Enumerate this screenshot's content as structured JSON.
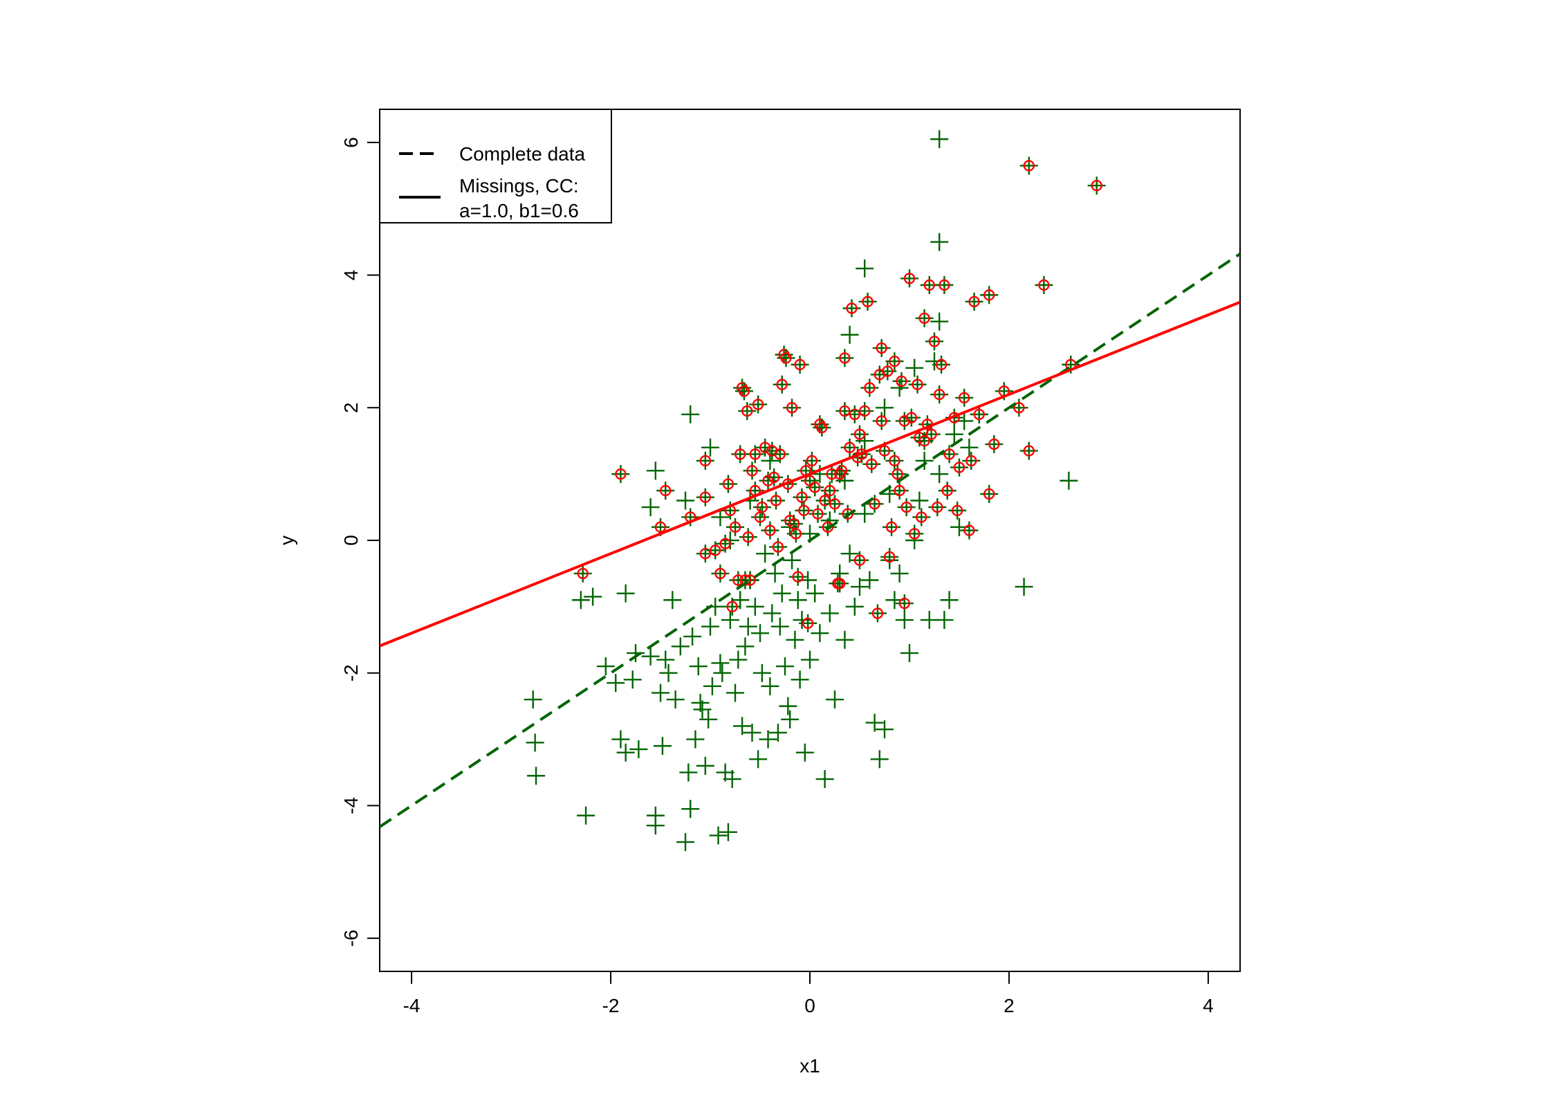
{
  "chart_data": {
    "type": "scatter",
    "title": "",
    "xlabel": "x1",
    "ylabel": "y",
    "xlim": [
      -4.32,
      4.32
    ],
    "ylim": [
      -6.5,
      6.5
    ],
    "xticks": [
      -4,
      -2,
      0,
      2,
      4
    ],
    "yticks": [
      -6,
      -4,
      -2,
      0,
      2,
      4,
      6
    ],
    "xtick_labels": [
      "-4",
      "-2",
      "0",
      "2",
      "4"
    ],
    "ytick_labels": [
      "-6",
      "-4",
      "-2",
      "0",
      "2",
      "4",
      "6"
    ],
    "grid": false,
    "legend_position": "top-left",
    "colors": {
      "complete": "#006400",
      "missing": "#ff0000"
    },
    "series": [
      {
        "name": "Complete data",
        "marker": "plus",
        "color": "#006400",
        "points": [
          [
            -2.78,
            -2.4
          ],
          [
            -2.76,
            -3.05
          ],
          [
            -2.75,
            -3.55
          ],
          [
            -2.3,
            -0.9
          ],
          [
            -2.25,
            -4.15
          ],
          [
            -2.18,
            -0.85
          ],
          [
            -2.05,
            -1.9
          ],
          [
            -1.95,
            -2.15
          ],
          [
            -1.9,
            -3.0
          ],
          [
            -1.85,
            -3.2
          ],
          [
            -1.85,
            -0.8
          ],
          [
            -1.78,
            -2.1
          ],
          [
            -1.75,
            -1.7
          ],
          [
            -1.72,
            -3.15
          ],
          [
            -1.6,
            -1.75
          ],
          [
            -1.55,
            -4.15
          ],
          [
            -1.55,
            -4.3
          ],
          [
            -1.5,
            -2.3
          ],
          [
            -1.48,
            -3.1
          ],
          [
            -1.45,
            -1.8
          ],
          [
            -1.42,
            -2.0
          ],
          [
            -1.38,
            -0.9
          ],
          [
            -1.35,
            -2.4
          ],
          [
            -1.3,
            -1.6
          ],
          [
            -1.25,
            -4.55
          ],
          [
            -1.22,
            -3.5
          ],
          [
            -1.2,
            -4.05
          ],
          [
            -1.18,
            -1.45
          ],
          [
            -1.15,
            -3.0
          ],
          [
            -1.12,
            -1.9
          ],
          [
            -1.1,
            -2.45
          ],
          [
            -1.08,
            -2.55
          ],
          [
            -1.05,
            -3.4
          ],
          [
            -1.02,
            -2.7
          ],
          [
            -1.0,
            -1.3
          ],
          [
            -0.98,
            -2.2
          ],
          [
            -0.95,
            -1.0
          ],
          [
            -0.92,
            -4.45
          ],
          [
            -0.9,
            -1.85
          ],
          [
            -0.88,
            -2.0
          ],
          [
            -0.85,
            -3.5
          ],
          [
            -0.82,
            -4.4
          ],
          [
            -0.8,
            -1.2
          ],
          [
            -0.78,
            -3.6
          ],
          [
            -0.75,
            -2.3
          ],
          [
            -0.72,
            -1.8
          ],
          [
            -0.7,
            -0.9
          ],
          [
            -0.68,
            -2.8
          ],
          [
            -0.65,
            -1.6
          ],
          [
            -0.62,
            -1.3
          ],
          [
            -0.6,
            -0.6
          ],
          [
            -0.58,
            -2.9
          ],
          [
            -0.55,
            -1.0
          ],
          [
            -0.52,
            -3.3
          ],
          [
            -0.5,
            -1.4
          ],
          [
            -0.48,
            -2.0
          ],
          [
            -0.45,
            -0.2
          ],
          [
            -0.42,
            -3.0
          ],
          [
            -0.4,
            -2.2
          ],
          [
            -0.38,
            -1.1
          ],
          [
            -0.35,
            -0.5
          ],
          [
            -0.32,
            -2.9
          ],
          [
            -0.3,
            -1.3
          ],
          [
            -0.28,
            -0.8
          ],
          [
            -0.25,
            -1.9
          ],
          [
            -0.22,
            -2.5
          ],
          [
            -0.2,
            -2.7
          ],
          [
            -0.18,
            -0.3
          ],
          [
            -0.15,
            -1.5
          ],
          [
            -0.12,
            -0.9
          ],
          [
            -0.1,
            -2.1
          ],
          [
            -0.08,
            -1.2
          ],
          [
            -0.05,
            -3.2
          ],
          [
            -0.02,
            -0.6
          ],
          [
            0.0,
            -1.8
          ],
          [
            0.05,
            -0.8
          ],
          [
            0.1,
            -1.4
          ],
          [
            0.15,
            -3.6
          ],
          [
            0.2,
            -1.1
          ],
          [
            0.25,
            -2.4
          ],
          [
            0.3,
            -0.5
          ],
          [
            0.35,
            -1.5
          ],
          [
            0.4,
            -0.2
          ],
          [
            0.45,
            -1.0
          ],
          [
            0.5,
            -0.7
          ],
          [
            0.55,
            0.4
          ],
          [
            0.6,
            -0.6
          ],
          [
            0.65,
            -2.75
          ],
          [
            0.7,
            -3.3
          ],
          [
            0.75,
            -2.85
          ],
          [
            0.8,
            -0.3
          ],
          [
            0.85,
            -0.9
          ],
          [
            0.9,
            -0.5
          ],
          [
            0.95,
            -1.2
          ],
          [
            1.0,
            -1.7
          ],
          [
            1.05,
            0.0
          ],
          [
            1.1,
            0.6
          ],
          [
            1.2,
            -1.2
          ],
          [
            1.3,
            1.0
          ],
          [
            1.35,
            -1.2
          ],
          [
            1.4,
            -0.9
          ],
          [
            1.5,
            0.2
          ],
          [
            1.6,
            1.4
          ],
          [
            2.15,
            -0.7
          ],
          [
            2.6,
            0.9
          ],
          [
            -1.55,
            1.05
          ],
          [
            -1.6,
            0.5
          ],
          [
            -1.25,
            0.6
          ],
          [
            -1.2,
            1.9
          ],
          [
            -1.0,
            1.4
          ],
          [
            -0.9,
            0.35
          ],
          [
            -0.8,
            0.0
          ],
          [
            -0.6,
            0.6
          ],
          [
            -0.4,
            1.2
          ],
          [
            -0.2,
            0.2
          ],
          [
            0.0,
            0.1
          ],
          [
            0.1,
            1.0
          ],
          [
            0.2,
            0.3
          ],
          [
            0.35,
            0.9
          ],
          [
            0.55,
            1.5
          ],
          [
            0.75,
            2.0
          ],
          [
            0.8,
            0.7
          ],
          [
            0.9,
            2.3
          ],
          [
            1.05,
            2.6
          ],
          [
            1.15,
            1.2
          ],
          [
            1.25,
            2.7
          ],
          [
            1.3,
            3.3
          ],
          [
            1.45,
            1.6
          ],
          [
            1.55,
            1.8
          ],
          [
            1.7,
            1.9
          ],
          [
            0.55,
            4.1
          ],
          [
            0.4,
            3.1
          ],
          [
            1.3,
            4.5
          ],
          [
            1.3,
            6.05
          ]
        ]
      },
      {
        "name": "Missings, CC:\na=1.0, b1=0.6",
        "marker": "circle",
        "color": "#ff0000",
        "points": [
          [
            -2.28,
            -0.5
          ],
          [
            -1.9,
            1.0
          ],
          [
            -1.5,
            0.2
          ],
          [
            -1.45,
            0.75
          ],
          [
            -1.2,
            0.35
          ],
          [
            -1.05,
            0.65
          ],
          [
            -1.05,
            -0.2
          ],
          [
            -1.05,
            1.2
          ],
          [
            -0.95,
            -0.15
          ],
          [
            -0.9,
            -0.5
          ],
          [
            -0.85,
            -0.05
          ],
          [
            -0.82,
            0.85
          ],
          [
            -0.8,
            0.45
          ],
          [
            -0.78,
            -1.0
          ],
          [
            -0.75,
            0.2
          ],
          [
            -0.72,
            -0.6
          ],
          [
            -0.7,
            1.3
          ],
          [
            -0.68,
            2.3
          ],
          [
            -0.66,
            2.25
          ],
          [
            -0.63,
            1.95
          ],
          [
            -0.62,
            0.05
          ],
          [
            -0.6,
            -0.6
          ],
          [
            -0.58,
            1.05
          ],
          [
            -0.55,
            0.75
          ],
          [
            -0.52,
            2.05
          ],
          [
            -0.5,
            0.35
          ],
          [
            -0.48,
            0.5
          ],
          [
            -0.45,
            1.4
          ],
          [
            -0.42,
            0.9
          ],
          [
            -0.4,
            0.15
          ],
          [
            -0.38,
            1.35
          ],
          [
            -0.36,
            0.95
          ],
          [
            -0.34,
            0.6
          ],
          [
            -0.32,
            -0.1
          ],
          [
            -0.3,
            1.3
          ],
          [
            -0.28,
            2.35
          ],
          [
            -0.26,
            2.8
          ],
          [
            -0.24,
            2.75
          ],
          [
            -0.22,
            0.85
          ],
          [
            -0.2,
            0.3
          ],
          [
            -0.18,
            2.0
          ],
          [
            -0.16,
            0.25
          ],
          [
            -0.14,
            0.1
          ],
          [
            -0.12,
            -0.55
          ],
          [
            -0.1,
            2.65
          ],
          [
            -0.08,
            0.65
          ],
          [
            -0.06,
            0.45
          ],
          [
            -0.04,
            1.05
          ],
          [
            -0.02,
            -1.25
          ],
          [
            0.0,
            0.9
          ],
          [
            0.02,
            1.2
          ],
          [
            0.05,
            0.8
          ],
          [
            0.08,
            0.4
          ],
          [
            0.1,
            1.75
          ],
          [
            0.12,
            1.7
          ],
          [
            0.15,
            0.6
          ],
          [
            0.18,
            0.2
          ],
          [
            0.2,
            0.75
          ],
          [
            0.22,
            1.0
          ],
          [
            0.25,
            0.55
          ],
          [
            0.28,
            -0.65
          ],
          [
            0.3,
            -0.65
          ],
          [
            0.32,
            1.05
          ],
          [
            0.35,
            2.75
          ],
          [
            0.38,
            0.4
          ],
          [
            0.4,
            1.4
          ],
          [
            0.42,
            3.5
          ],
          [
            0.45,
            1.9
          ],
          [
            0.48,
            1.25
          ],
          [
            0.5,
            -0.3
          ],
          [
            0.52,
            1.3
          ],
          [
            0.55,
            1.95
          ],
          [
            0.58,
            3.6
          ],
          [
            0.6,
            2.3
          ],
          [
            0.62,
            1.15
          ],
          [
            0.65,
            0.55
          ],
          [
            0.68,
            -1.1
          ],
          [
            0.7,
            2.5
          ],
          [
            0.72,
            1.8
          ],
          [
            0.75,
            1.35
          ],
          [
            0.78,
            2.55
          ],
          [
            0.8,
            -0.25
          ],
          [
            0.82,
            0.2
          ],
          [
            0.85,
            2.7
          ],
          [
            0.88,
            1.0
          ],
          [
            0.9,
            0.75
          ],
          [
            0.92,
            2.4
          ],
          [
            0.95,
            1.8
          ],
          [
            0.97,
            0.5
          ],
          [
            1.0,
            3.95
          ],
          [
            1.02,
            1.85
          ],
          [
            1.05,
            0.1
          ],
          [
            1.08,
            2.35
          ],
          [
            1.1,
            1.55
          ],
          [
            1.12,
            0.35
          ],
          [
            1.15,
            3.35
          ],
          [
            1.18,
            1.75
          ],
          [
            1.2,
            3.85
          ],
          [
            1.22,
            1.6
          ],
          [
            1.25,
            3.0
          ],
          [
            1.28,
            0.5
          ],
          [
            1.3,
            2.2
          ],
          [
            1.32,
            2.65
          ],
          [
            1.35,
            3.85
          ],
          [
            1.38,
            0.75
          ],
          [
            1.4,
            1.3
          ],
          [
            1.45,
            1.85
          ],
          [
            1.48,
            0.45
          ],
          [
            1.5,
            1.1
          ],
          [
            1.55,
            2.15
          ],
          [
            1.6,
            0.15
          ],
          [
            1.62,
            1.2
          ],
          [
            1.65,
            3.6
          ],
          [
            1.7,
            1.9
          ],
          [
            1.8,
            3.7
          ],
          [
            1.8,
            0.7
          ],
          [
            1.85,
            1.45
          ],
          [
            1.95,
            2.25
          ],
          [
            2.1,
            2.0
          ],
          [
            2.2,
            1.35
          ],
          [
            2.2,
            5.65
          ],
          [
            2.35,
            3.85
          ],
          [
            2.62,
            2.65
          ],
          [
            2.88,
            5.35
          ],
          [
            0.95,
            -0.95
          ],
          [
            0.72,
            2.9
          ],
          [
            0.35,
            1.95
          ],
          [
            -0.55,
            1.3
          ],
          [
            -0.65,
            -0.6
          ],
          [
            0.5,
            1.6
          ],
          [
            0.85,
            1.2
          ],
          [
            1.15,
            1.5
          ],
          [
            0.3,
            1.0
          ]
        ]
      }
    ],
    "lines": [
      {
        "name": "Complete data",
        "style": "dashed",
        "color": "#006400",
        "intercept": 0.0,
        "slope": 1.0
      },
      {
        "name": "Missings, CC: a=1.0, b1=0.6",
        "style": "solid",
        "color": "#ff0000",
        "intercept": 1.0,
        "slope": 0.6
      }
    ],
    "legend": [
      {
        "label": "Complete data",
        "style": "dashed"
      },
      {
        "label": "Missings, CC:",
        "label2": "a=1.0, b1=0.6",
        "style": "solid"
      }
    ]
  }
}
